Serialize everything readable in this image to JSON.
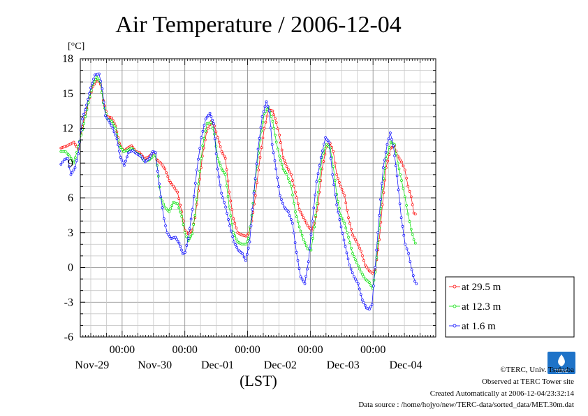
{
  "chart_data": {
    "type": "line",
    "title": "Air Temperature / 2006-12-04",
    "unit_label": "[°C]",
    "xlabel": "(LST)",
    "ylim": [
      -6,
      18
    ],
    "y_ticks": [
      -6,
      -3,
      0,
      3,
      6,
      9,
      12,
      15,
      18
    ],
    "x_range_hours": [
      -16,
      120
    ],
    "x_major_ticks": [
      {
        "hour": 0,
        "time": "00:00",
        "date": "Nov-29"
      },
      {
        "hour": 24,
        "time": "00:00",
        "date": "Nov-30"
      },
      {
        "hour": 48,
        "time": "00:00",
        "date": "Dec-01"
      },
      {
        "hour": 72,
        "time": "00:00",
        "date": "Dec-02"
      },
      {
        "hour": 96,
        "time": "00:00",
        "date": "Dec-03"
      },
      {
        "hour": null,
        "time": "",
        "date": "Dec-04"
      }
    ],
    "grid": true,
    "legend_position": "right",
    "series": [
      {
        "name": "at 29.5 m",
        "color": "#ff0000",
        "points": [
          [
            -23.4,
            10.3
          ],
          [
            -20.9,
            10.5
          ],
          [
            -18.5,
            10.8
          ],
          [
            -16.8,
            10.2
          ],
          [
            -14.6,
            12.8
          ],
          [
            -12.9,
            14.2
          ],
          [
            -11.2,
            15.6
          ],
          [
            -9.6,
            16.2
          ],
          [
            -8.3,
            15.8
          ],
          [
            -7.2,
            14.4
          ],
          [
            -5.6,
            13.0
          ],
          [
            -4.0,
            12.9
          ],
          [
            -2.5,
            12.2
          ],
          [
            -1.0,
            10.7
          ],
          [
            0.6,
            10.0
          ],
          [
            2.0,
            10.3
          ],
          [
            3.6,
            10.5
          ],
          [
            5.2,
            10.0
          ],
          [
            6.8,
            9.9
          ],
          [
            8.4,
            9.4
          ],
          [
            10.0,
            9.5
          ],
          [
            11.4,
            9.8
          ],
          [
            12.6,
            9.8
          ],
          [
            13.2,
            9.3
          ],
          [
            14.8,
            9.0
          ],
          [
            16.4,
            8.5
          ],
          [
            18.0,
            7.5
          ],
          [
            19.6,
            7.0
          ],
          [
            21.2,
            6.5
          ],
          [
            22.8,
            4.8
          ],
          [
            24.0,
            3.2
          ],
          [
            25.3,
            2.9
          ],
          [
            26.8,
            3.2
          ],
          [
            27.9,
            4.3
          ],
          [
            29.2,
            6.6
          ],
          [
            30.7,
            9.6
          ],
          [
            32.3,
            11.7
          ],
          [
            34.1,
            12.6
          ],
          [
            35.3,
            12.2
          ],
          [
            36.6,
            11.2
          ],
          [
            38.1,
            10.0
          ],
          [
            39.5,
            9.4
          ],
          [
            41.0,
            6.5
          ],
          [
            42.6,
            4.2
          ],
          [
            44.2,
            3.0
          ],
          [
            45.8,
            2.8
          ],
          [
            47.4,
            2.7
          ],
          [
            48.3,
            2.9
          ],
          [
            49.6,
            4.0
          ],
          [
            51.0,
            6.2
          ],
          [
            52.8,
            9.5
          ],
          [
            54.4,
            12.0
          ],
          [
            56.0,
            13.6
          ],
          [
            57.6,
            13.5
          ],
          [
            59.0,
            12.5
          ],
          [
            60.2,
            11.4
          ],
          [
            61.6,
            9.5
          ],
          [
            63.0,
            8.7
          ],
          [
            64.7,
            8.0
          ],
          [
            66.3,
            6.5
          ],
          [
            67.8,
            5.0
          ],
          [
            69.4,
            4.3
          ],
          [
            71.0,
            3.6
          ],
          [
            72.6,
            3.2
          ],
          [
            73.6,
            3.8
          ],
          [
            75.0,
            5.5
          ],
          [
            76.5,
            8.5
          ],
          [
            78.2,
            10.4
          ],
          [
            79.6,
            10.7
          ],
          [
            80.8,
            10.0
          ],
          [
            82.1,
            8.0
          ],
          [
            83.6,
            7.0
          ],
          [
            85.1,
            6.2
          ],
          [
            86.6,
            4.3
          ],
          [
            88.2,
            2.8
          ],
          [
            89.8,
            2.2
          ],
          [
            91.4,
            1.4
          ],
          [
            93.0,
            0.2
          ],
          [
            94.6,
            -0.3
          ],
          [
            95.8,
            -0.5
          ],
          [
            96.9,
            -0.2
          ],
          [
            98.4,
            2.4
          ],
          [
            99.6,
            5.4
          ],
          [
            101.0,
            8.6
          ],
          [
            102.8,
            10.3
          ],
          [
            104.2,
            10.5
          ],
          [
            105.5,
            9.6
          ],
          [
            106.9,
            9.1
          ],
          [
            108.2,
            8.4
          ],
          [
            109.4,
            7.0
          ],
          [
            110.6,
            6.1
          ],
          [
            111.6,
            4.7
          ],
          [
            112.2,
            4.6
          ]
        ]
      },
      {
        "name": "at 12.3 m",
        "color": "#00e000",
        "points": [
          [
            -23.4,
            10.0
          ],
          [
            -21.7,
            10.0
          ],
          [
            -20.1,
            9.6
          ],
          [
            -18.5,
            9.0
          ],
          [
            -16.8,
            10.4
          ],
          [
            -14.6,
            12.4
          ],
          [
            -12.9,
            14.2
          ],
          [
            -11.2,
            15.8
          ],
          [
            -9.7,
            16.4
          ],
          [
            -8.3,
            16.0
          ],
          [
            -7.2,
            14.2
          ],
          [
            -5.6,
            12.8
          ],
          [
            -4.0,
            12.6
          ],
          [
            -2.5,
            12.0
          ],
          [
            -1.0,
            10.5
          ],
          [
            0.6,
            10.0
          ],
          [
            2.0,
            10.1
          ],
          [
            3.6,
            10.3
          ],
          [
            5.2,
            9.9
          ],
          [
            6.8,
            9.7
          ],
          [
            8.4,
            9.2
          ],
          [
            10.0,
            9.2
          ],
          [
            11.4,
            9.5
          ],
          [
            12.6,
            9.7
          ],
          [
            13.4,
            8.8
          ],
          [
            14.8,
            6.0
          ],
          [
            16.4,
            5.2
          ],
          [
            18.0,
            4.8
          ],
          [
            19.6,
            5.6
          ],
          [
            21.2,
            5.5
          ],
          [
            22.8,
            4.4
          ],
          [
            24.0,
            3.0
          ],
          [
            25.3,
            2.3
          ],
          [
            26.8,
            2.9
          ],
          [
            27.9,
            4.5
          ],
          [
            29.2,
            7.2
          ],
          [
            30.8,
            10.5
          ],
          [
            32.5,
            12.4
          ],
          [
            34.0,
            12.5
          ],
          [
            35.3,
            11.5
          ],
          [
            36.6,
            9.4
          ],
          [
            38.1,
            8.5
          ],
          [
            39.5,
            8.0
          ],
          [
            41.0,
            5.2
          ],
          [
            42.6,
            3.0
          ],
          [
            44.2,
            2.2
          ],
          [
            45.8,
            2.0
          ],
          [
            47.4,
            2.0
          ],
          [
            48.3,
            2.5
          ],
          [
            49.6,
            4.5
          ],
          [
            51.0,
            7.6
          ],
          [
            52.8,
            11.0
          ],
          [
            54.4,
            13.3
          ],
          [
            56.0,
            13.8
          ],
          [
            57.6,
            12.6
          ],
          [
            59.0,
            10.8
          ],
          [
            60.2,
            9.6
          ],
          [
            61.6,
            8.5
          ],
          [
            63.0,
            8.0
          ],
          [
            64.7,
            7.0
          ],
          [
            66.3,
            4.8
          ],
          [
            67.8,
            3.5
          ],
          [
            69.4,
            2.4
          ],
          [
            71.0,
            1.6
          ],
          [
            72.3,
            1.5
          ],
          [
            73.6,
            3.5
          ],
          [
            75.0,
            6.5
          ],
          [
            76.5,
            9.5
          ],
          [
            78.2,
            10.6
          ],
          [
            79.6,
            10.3
          ],
          [
            80.8,
            8.7
          ],
          [
            82.1,
            6.3
          ],
          [
            83.6,
            4.5
          ],
          [
            85.1,
            3.8
          ],
          [
            86.6,
            2.6
          ],
          [
            88.2,
            1.2
          ],
          [
            89.8,
            0.4
          ],
          [
            91.4,
            -0.4
          ],
          [
            93.0,
            -1.0
          ],
          [
            94.6,
            -1.3
          ],
          [
            95.8,
            -1.8
          ],
          [
            96.9,
            -0.4
          ],
          [
            98.4,
            3.4
          ],
          [
            99.6,
            6.8
          ],
          [
            101.0,
            9.4
          ],
          [
            102.8,
            10.8
          ],
          [
            104.2,
            10.6
          ],
          [
            105.5,
            9.0
          ],
          [
            106.9,
            7.5
          ],
          [
            108.2,
            6.1
          ],
          [
            109.4,
            4.6
          ],
          [
            110.6,
            3.3
          ],
          [
            111.6,
            2.4
          ],
          [
            112.2,
            2.1
          ]
        ]
      },
      {
        "name": "at 1.6 m",
        "color": "#0000ff",
        "points": [
          [
            -23.4,
            8.9
          ],
          [
            -22.1,
            9.3
          ],
          [
            -20.9,
            9.4
          ],
          [
            -19.6,
            8.0
          ],
          [
            -18.0,
            8.6
          ],
          [
            -16.8,
            9.8
          ],
          [
            -15.2,
            12.8
          ],
          [
            -13.6,
            14.0
          ],
          [
            -12.0,
            15.5
          ],
          [
            -10.4,
            16.6
          ],
          [
            -8.8,
            16.7
          ],
          [
            -7.6,
            15.4
          ],
          [
            -6.4,
            13.1
          ],
          [
            -5.2,
            12.7
          ],
          [
            -3.6,
            12.0
          ],
          [
            -2.0,
            11.1
          ],
          [
            -0.6,
            9.5
          ],
          [
            0.8,
            8.8
          ],
          [
            2.4,
            9.9
          ],
          [
            4.0,
            10.1
          ],
          [
            5.6,
            9.8
          ],
          [
            7.2,
            9.6
          ],
          [
            8.8,
            9.1
          ],
          [
            10.4,
            9.4
          ],
          [
            11.8,
            10.0
          ],
          [
            12.8,
            9.9
          ],
          [
            13.6,
            8.3
          ],
          [
            14.8,
            6.1
          ],
          [
            16.0,
            4.2
          ],
          [
            17.2,
            3.0
          ],
          [
            18.8,
            2.5
          ],
          [
            20.4,
            2.6
          ],
          [
            21.8,
            2.1
          ],
          [
            23.2,
            1.2
          ],
          [
            24.1,
            1.3
          ],
          [
            25.3,
            2.5
          ],
          [
            26.9,
            5.0
          ],
          [
            28.6,
            8.4
          ],
          [
            30.3,
            11.2
          ],
          [
            32.0,
            12.8
          ],
          [
            33.6,
            13.3
          ],
          [
            35.0,
            12.4
          ],
          [
            36.5,
            8.5
          ],
          [
            38.0,
            6.4
          ],
          [
            39.6,
            5.2
          ],
          [
            41.2,
            3.6
          ],
          [
            42.8,
            2.2
          ],
          [
            44.4,
            1.5
          ],
          [
            46.0,
            1.2
          ],
          [
            47.3,
            0.6
          ],
          [
            48.8,
            2.2
          ],
          [
            50.4,
            6.4
          ],
          [
            52.0,
            10.2
          ],
          [
            53.6,
            13.0
          ],
          [
            55.2,
            14.3
          ],
          [
            56.3,
            13.5
          ],
          [
            57.4,
            10.6
          ],
          [
            58.9,
            8.5
          ],
          [
            60.4,
            6.2
          ],
          [
            62.0,
            5.2
          ],
          [
            63.6,
            4.8
          ],
          [
            65.2,
            3.8
          ],
          [
            66.7,
            1.3
          ],
          [
            68.3,
            -0.8
          ],
          [
            69.9,
            -1.4
          ],
          [
            71.3,
            0.5
          ],
          [
            72.8,
            4.0
          ],
          [
            74.4,
            7.4
          ],
          [
            76.1,
            9.5
          ],
          [
            77.8,
            11.2
          ],
          [
            79.2,
            10.8
          ],
          [
            80.5,
            8.0
          ],
          [
            82.1,
            5.4
          ],
          [
            83.8,
            3.5
          ],
          [
            85.4,
            1.8
          ],
          [
            87.0,
            0.2
          ],
          [
            88.7,
            -0.8
          ],
          [
            90.3,
            -1.4
          ],
          [
            91.9,
            -2.8
          ],
          [
            93.5,
            -3.5
          ],
          [
            94.6,
            -3.6
          ],
          [
            95.6,
            -3.2
          ],
          [
            96.8,
            0.0
          ],
          [
            98.4,
            4.5
          ],
          [
            99.9,
            8.6
          ],
          [
            101.4,
            10.6
          ],
          [
            102.6,
            11.6
          ],
          [
            103.8,
            10.5
          ],
          [
            105.2,
            7.9
          ],
          [
            106.8,
            4.3
          ],
          [
            108.3,
            2.0
          ],
          [
            109.6,
            1.2
          ],
          [
            110.8,
            -0.2
          ],
          [
            112.0,
            -1.2
          ],
          [
            112.6,
            -1.4
          ]
        ]
      }
    ]
  },
  "credits": {
    "logo_text": "TERC",
    "copyright": "©TERC, Univ. Tsukuba",
    "observed": "Observed at TERC Tower site",
    "created": "Created Automatically at 2006-12-04/23:32:14",
    "source": "Data source : /home/hojyo/new/TERC-data/sorted_data/MET.30m.dat"
  }
}
